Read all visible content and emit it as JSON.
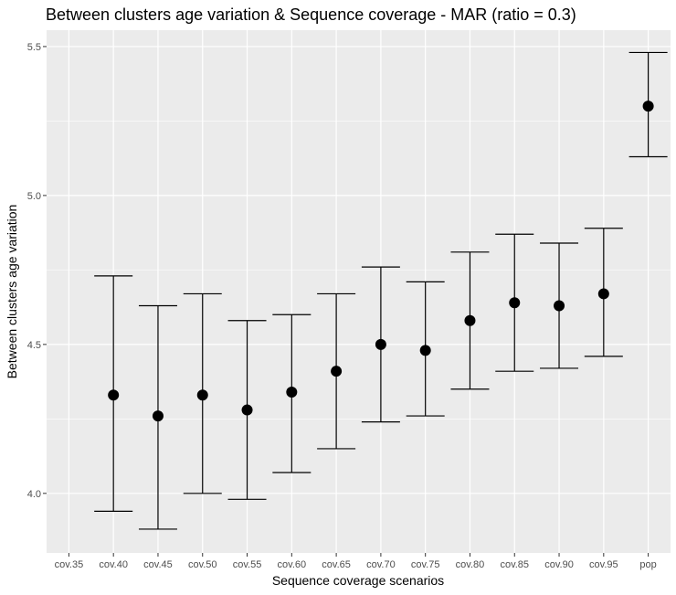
{
  "chart_data": {
    "type": "scatter",
    "title": "Between clusters age variation & Sequence coverage - MAR (ratio = 0.3)",
    "xlabel": "Sequence coverage scenarios",
    "ylabel": "Between clusters age variation",
    "categories": [
      "cov.35",
      "cov.40",
      "cov.45",
      "cov.50",
      "cov.55",
      "cov.60",
      "cov.65",
      "cov.70",
      "cov.75",
      "cov.80",
      "cov.85",
      "cov.90",
      "cov.95",
      "pop"
    ],
    "series": [
      {
        "values": [
          null,
          4.33,
          4.26,
          4.33,
          4.28,
          4.34,
          4.41,
          4.5,
          4.48,
          4.58,
          4.64,
          4.63,
          4.67,
          5.3
        ],
        "lower": [
          null,
          3.94,
          3.88,
          4.0,
          3.98,
          4.07,
          4.15,
          4.24,
          4.26,
          4.35,
          4.41,
          4.42,
          4.46,
          5.13
        ],
        "upper": [
          null,
          4.73,
          4.63,
          4.67,
          4.58,
          4.6,
          4.67,
          4.76,
          4.71,
          4.81,
          4.87,
          4.84,
          4.89,
          5.48
        ]
      }
    ],
    "yticks": [
      4.0,
      4.5,
      5.0,
      5.5
    ],
    "ytick_labels": [
      "4.0",
      "4.5",
      "5.0",
      "5.5"
    ],
    "ylim": [
      3.8,
      5.555
    ],
    "grid": true,
    "colors": {
      "panel": "#ebebeb",
      "grid_major": "#ffffff",
      "point": "#000000",
      "errorbar": "#000000",
      "tick_label": "#4d4d4d"
    }
  }
}
